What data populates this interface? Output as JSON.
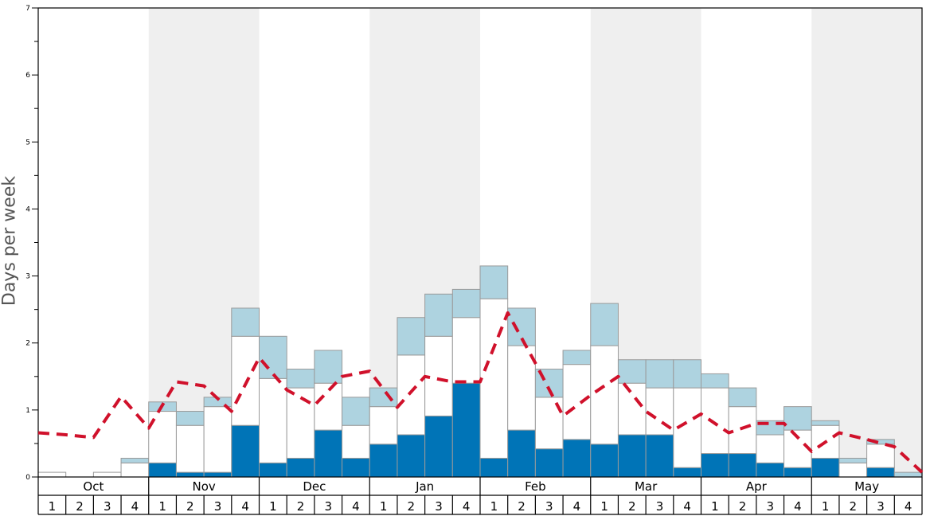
{
  "chart_data": {
    "type": "bar",
    "ylabel": "Days per week",
    "ylim": [
      0,
      7
    ],
    "yticks": [
      "0",
      "1",
      "2",
      "3",
      "4",
      "5",
      "6",
      "7"
    ],
    "months": [
      "Oct",
      "Nov",
      "Dec",
      "Jan",
      "Feb",
      "Mar",
      "Apr",
      "May"
    ],
    "weeks": [
      "1",
      "2",
      "3",
      "4"
    ],
    "shaded_months": [
      "Nov",
      "Jan",
      "Mar",
      "May"
    ],
    "colors": {
      "dark": "#0074b7",
      "white": "#ffffff",
      "light": "#aed3e0",
      "line": "#d0112b",
      "shade": "#efefef"
    },
    "series": [
      {
        "role": "dark",
        "values": [
          0,
          0,
          0,
          0,
          0.21,
          0.07,
          0.07,
          0.77,
          0.21,
          0.28,
          0.7,
          0.28,
          0.49,
          0.63,
          0.91,
          1.4,
          0.28,
          0.7,
          0.42,
          0.56,
          0.49,
          0.63,
          0.63,
          0.14,
          0.35,
          0.35,
          0.21,
          0.14,
          0.28,
          0,
          0.14,
          0
        ]
      },
      {
        "role": "white",
        "values": [
          0.07,
          0,
          0.07,
          0.21,
          0.77,
          0.7,
          0.98,
          1.33,
          1.26,
          1.05,
          0.7,
          0.49,
          0.56,
          1.19,
          1.19,
          0.98,
          2.38,
          1.26,
          0.77,
          1.12,
          1.47,
          0.77,
          0.7,
          1.19,
          0.98,
          0.7,
          0.42,
          0.56,
          0.49,
          0.21,
          0.35,
          0
        ]
      },
      {
        "role": "light",
        "values": [
          0,
          0,
          0,
          0.07,
          0.14,
          0.21,
          0.14,
          0.42,
          0.63,
          0.28,
          0.49,
          0.42,
          0.28,
          0.56,
          0.63,
          0.42,
          0.49,
          0.56,
          0.42,
          0.21,
          0.63,
          0.35,
          0.42,
          0.42,
          0.21,
          0.28,
          0.21,
          0.35,
          0.07,
          0.07,
          0.07,
          0.07
        ]
      },
      {
        "role": "line",
        "values": [
          0.66,
          0.63,
          0.59,
          1.2,
          0.73,
          1.42,
          1.36,
          0.98,
          1.78,
          1.3,
          1.07,
          1.5,
          1.58,
          1.04,
          1.5,
          1.42,
          1.42,
          2.45,
          1.7,
          0.91,
          1.22,
          1.5,
          0.98,
          0.7,
          0.94,
          0.66,
          0.8,
          0.8,
          0.38,
          0.66,
          0.56,
          0.45,
          0.07
        ]
      }
    ]
  }
}
